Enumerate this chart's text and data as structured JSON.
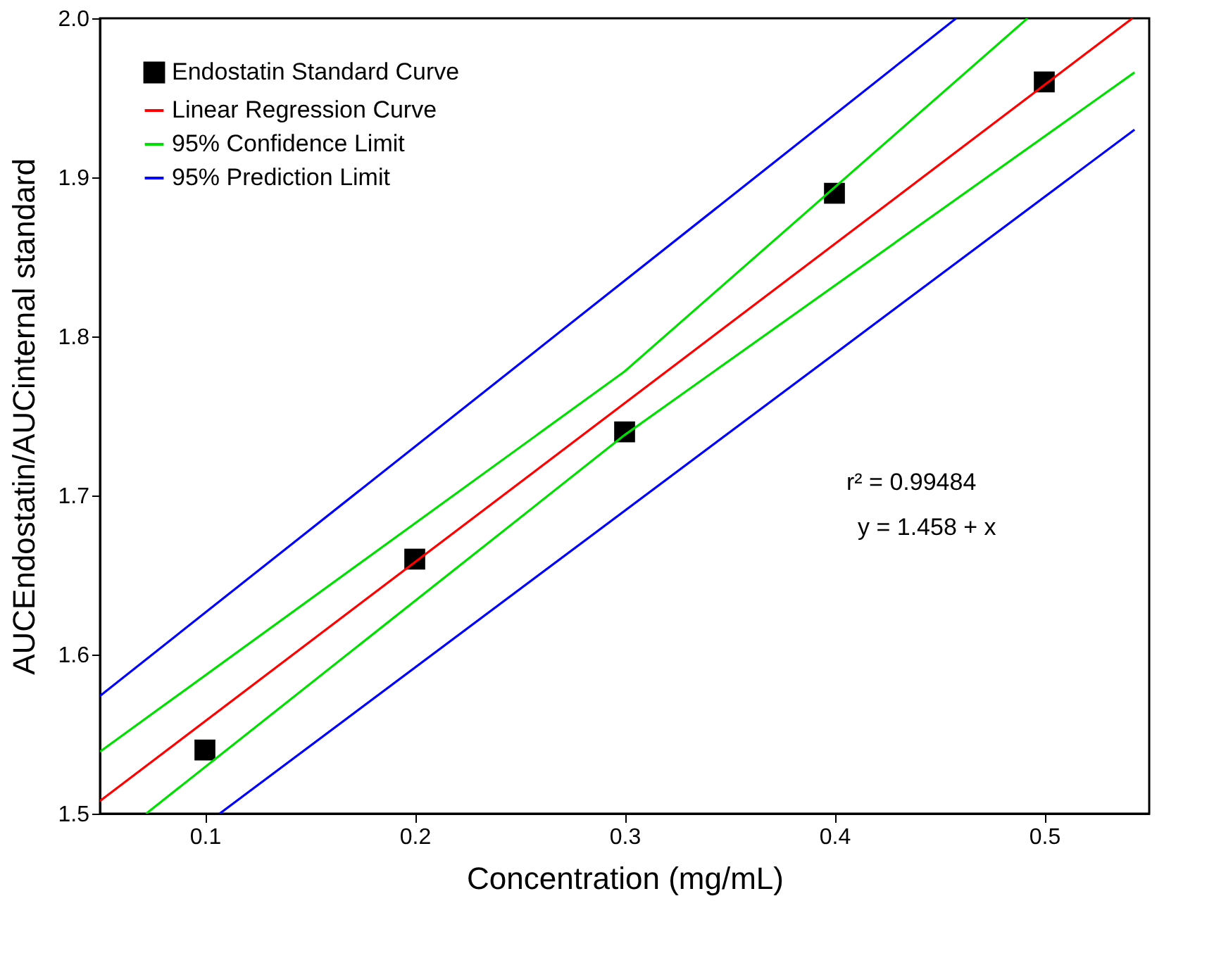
{
  "chart_data": {
    "type": "scatter",
    "xlabel": "Concentration (mg/mL)",
    "ylabel": "AUCEndostatin/AUCinternal standard",
    "xlim": [
      0.05,
      0.55
    ],
    "xticks": [
      0.1,
      0.2,
      0.3,
      0.4,
      0.5
    ],
    "ylim": [
      1.5,
      2.0
    ],
    "yticks": [
      1.5,
      1.6,
      1.7,
      1.8,
      1.9,
      {
        "value": 2,
        "label": "2.0"
      }
    ],
    "grid": false,
    "legend": "top left",
    "annotations": [
      "r² = 0.99484",
      "y = 1.458 + x"
    ],
    "series": [
      {
        "name": "Endostatin Standard Curve",
        "marker": "square",
        "color": "#000000",
        "x": [
          0.1,
          0.2,
          0.3,
          0.4,
          0.5
        ],
        "values": [
          1.54,
          1.66,
          1.74,
          1.89,
          1.96
        ]
      },
      {
        "name": "Linear Regression Curve",
        "type": "line",
        "color": "#ff0000",
        "x": [
          0.05,
          0.542
        ],
        "values": [
          1.508,
          2.0
        ]
      },
      {
        "name": "95% Confidence Limit",
        "type": "line",
        "color": "#00e000",
        "x": [
          0.05,
          0.3,
          0.492
        ],
        "values": [
          1.539,
          1.778,
          2.0
        ]
      },
      {
        "type": "line",
        "color": "#00e000",
        "x": [
          0.072,
          0.3,
          0.543
        ],
        "values": [
          1.5,
          1.738,
          1.966
        ]
      },
      {
        "name": "95% Prediction Limit",
        "type": "line",
        "color": "#0000ff",
        "x": [
          0.05,
          0.458
        ],
        "values": [
          1.574,
          2.0
        ]
      },
      {
        "type": "line",
        "color": "#0000ff",
        "x": [
          0.107,
          0.543
        ],
        "values": [
          1.5,
          1.93
        ]
      }
    ]
  }
}
